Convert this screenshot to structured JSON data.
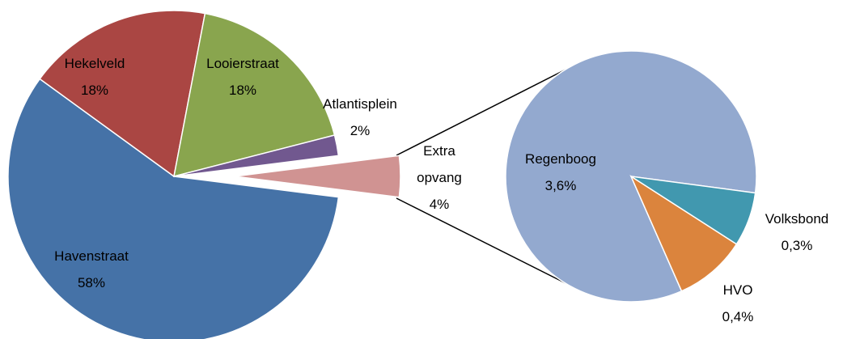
{
  "chart_data": [
    {
      "type": "pie",
      "categories": [
        "Havenstraat",
        "Hekelveld",
        "Looierstraat",
        "Atlantisplein",
        "Extra opvang"
      ],
      "values": [
        58,
        18,
        18,
        2,
        4
      ],
      "value_labels": [
        "58%",
        "18%",
        "18%",
        "2%",
        "4%"
      ],
      "colors": [
        "#4572a7",
        "#aa4643",
        "#89a54e",
        "#71588f",
        "#d09392"
      ]
    },
    {
      "type": "pie",
      "categories": [
        "Regenboog",
        "HVO",
        "Volksbond"
      ],
      "values": [
        3.6,
        0.4,
        0.3
      ],
      "value_labels": [
        "3,6%",
        "0,4%",
        "0,3%"
      ],
      "colors": [
        "#93a9cf",
        "#db843d",
        "#4198af"
      ]
    }
  ]
}
